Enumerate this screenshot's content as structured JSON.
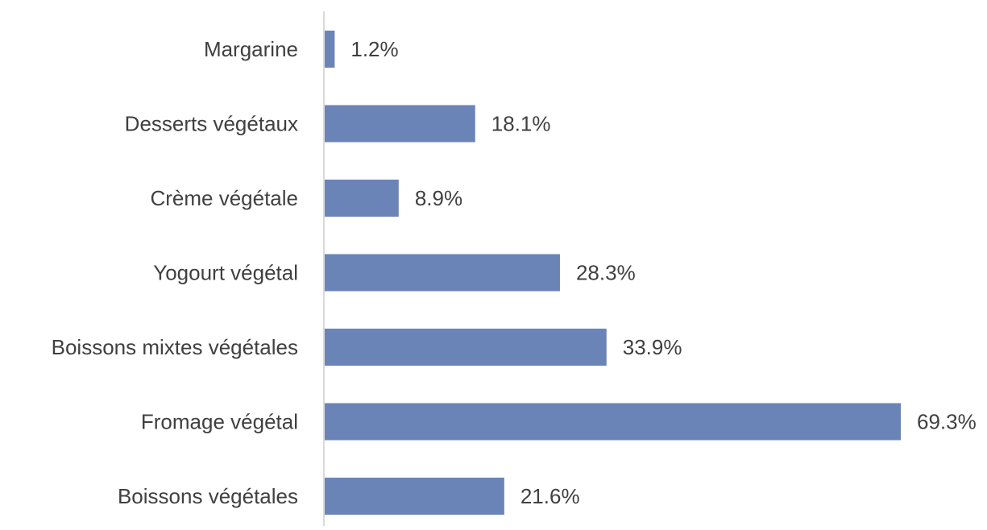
{
  "chart_data": {
    "type": "bar",
    "orientation": "horizontal",
    "title": "",
    "xlabel": "",
    "ylabel": "",
    "xlim": [
      0,
      70
    ],
    "grid": false,
    "legend": "none",
    "bar_color": "#6b84b7",
    "axis_color": "#d9d9d9",
    "text_color": "#404040",
    "categories": [
      "Margarine",
      "Desserts végétaux",
      "Crème végétale",
      "Yogourt végétal",
      "Boissons mixtes végétales",
      "Fromage végétal",
      "Boissons végétales"
    ],
    "values": [
      1.2,
      18.1,
      8.9,
      28.3,
      33.9,
      69.3,
      21.6
    ],
    "data_labels": [
      "1.2%",
      "18.1%",
      "8.9%",
      "28.3%",
      "33.9%",
      "69.3%",
      "21.6%"
    ]
  }
}
